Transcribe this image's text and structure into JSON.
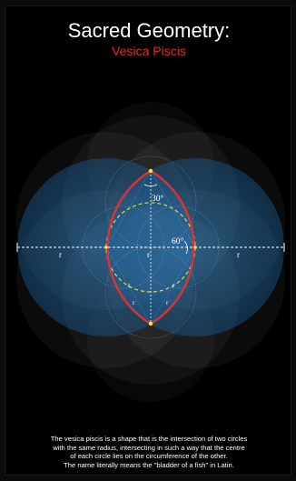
{
  "header": {
    "title": "Sacred Geometry:",
    "subtitle": "Vesica Piscis"
  },
  "diagram": {
    "labels": {
      "angle_top": "30°",
      "angle_right": "60°",
      "radius": "r"
    }
  },
  "caption": {
    "lines": [
      "The vesica piscis is a shape that is the intersection of two circles",
      "with the same radius, intersecting in such a way that the centre",
      "of each circle lies on the circumference of the other.",
      "The name literally means the \"bladder of a fish\" in Latin."
    ]
  },
  "colors": {
    "background": "#000000",
    "circle_fill": "#1f6fb0",
    "vesica_outline": "#e03131",
    "inscribed_circle": "#d4e04a",
    "axis": "#ffffff",
    "title": "#ffffff",
    "subtitle": "#e02a2a"
  }
}
